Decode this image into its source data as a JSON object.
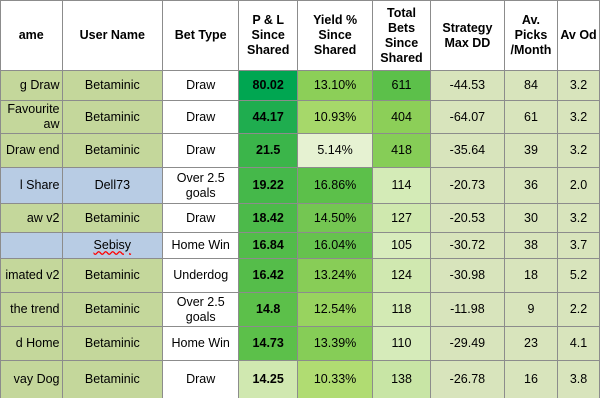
{
  "table": {
    "header": [
      "ame",
      "User Name",
      "Bet Type",
      "P & L Since Shared",
      "Yield % Since Shared",
      "Total Bets Since Shared",
      "Strategy Max DD",
      "Av. Picks /Month",
      "Av Od"
    ],
    "rows": [
      [
        "g Draw",
        "Betaminic",
        "Draw",
        "80.02",
        "13.10%",
        "611",
        "-44.53",
        "84",
        "3.2"
      ],
      [
        "Favourite aw",
        "Betaminic",
        "Draw",
        "44.17",
        "10.93%",
        "404",
        "-64.07",
        "61",
        "3.2"
      ],
      [
        "Draw end",
        "Betaminic",
        "Draw",
        "21.5",
        "5.14%",
        "418",
        "-35.64",
        "39",
        "3.2"
      ],
      [
        "l Share",
        "Dell73",
        "Over 2.5 goals",
        "19.22",
        "16.86%",
        "114",
        "-20.73",
        "36",
        "2.0"
      ],
      [
        "aw v2",
        "Betaminic",
        "Draw",
        "18.42",
        "14.50%",
        "127",
        "-20.53",
        "30",
        "3.2"
      ],
      [
        "",
        "Sebisy",
        "Home Win",
        "16.84",
        "16.04%",
        "105",
        "-30.72",
        "38",
        "3.7"
      ],
      [
        "imated v2",
        "Betaminic",
        "Underdog",
        "16.42",
        "13.24%",
        "124",
        "-30.98",
        "18",
        "5.2"
      ],
      [
        "the trend",
        "Betaminic",
        "Over 2.5 goals",
        "14.8",
        "12.54%",
        "118",
        "-11.98",
        "9",
        "2.2"
      ],
      [
        "d Home",
        "Betaminic",
        "Home Win",
        "14.73",
        "13.39%",
        "110",
        "-29.49",
        "23",
        "4.1"
      ],
      [
        "vay Dog",
        "Betaminic",
        "Draw",
        "14.25",
        "10.33%",
        "138",
        "-26.78",
        "16",
        "3.8"
      ]
    ]
  }
}
